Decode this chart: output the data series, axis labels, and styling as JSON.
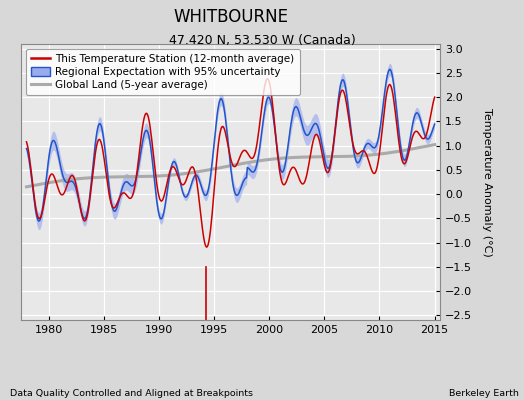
{
  "title": "WHITBOURNE",
  "subtitle": "47.420 N, 53.530 W (Canada)",
  "ylabel": "Temperature Anomaly (°C)",
  "xlabel_left": "Data Quality Controlled and Aligned at Breakpoints",
  "xlabel_right": "Berkeley Earth",
  "xlim": [
    1977.5,
    2015.5
  ],
  "ylim": [
    -2.6,
    3.1
  ],
  "yticks": [
    -2.5,
    -2,
    -1.5,
    -1,
    -0.5,
    0,
    0.5,
    1,
    1.5,
    2,
    2.5,
    3
  ],
  "xticks": [
    1980,
    1985,
    1990,
    1995,
    2000,
    2005,
    2010,
    2015
  ],
  "bg_color": "#d8d8d8",
  "plot_bg_color": "#e8e8e8",
  "grid_color": "white",
  "title_fontsize": 12,
  "subtitle_fontsize": 9,
  "axis_fontsize": 8,
  "legend_fontsize": 7.5,
  "red_color": "#cc0000",
  "blue_color": "#2255cc",
  "blue_fill_color": "#99aaee",
  "gray_color": "#aaaaaa",
  "station_move_color": "#cc0000",
  "record_gap_color": "#008800",
  "time_obs_color": "#2255cc",
  "empirical_break_color": "#111111",
  "marker_year": 1994.3
}
